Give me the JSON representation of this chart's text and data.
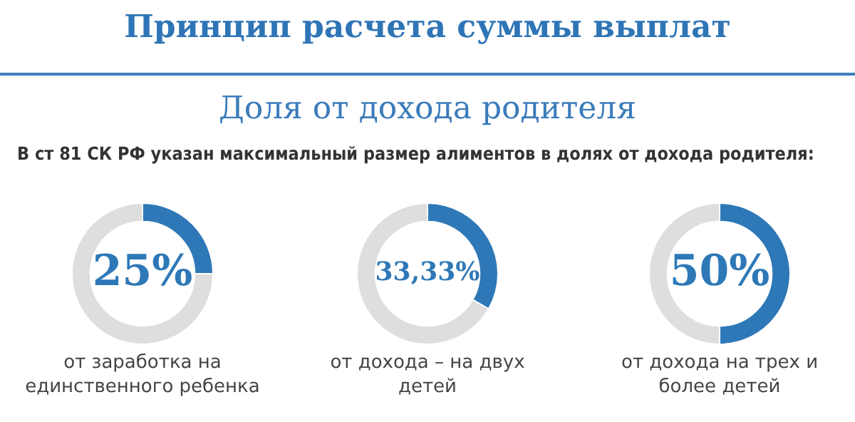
{
  "chart_data": [
    {
      "type": "other",
      "title": "Принцип расчета суммы выплат",
      "subtitle": "Доля от дохода родителя",
      "annotations": [
        "В ст 81 СК РФ указан максимальный размер алиментов в долях от дохода родителя:"
      ]
    },
    {
      "type": "donut",
      "categories": [
        null,
        null
      ],
      "values": [
        25,
        75
      ],
      "colors": [
        "#2e78b7",
        "#dedede"
      ],
      "value_labels": [
        "25%",
        null
      ],
      "xlabel": "от заработка на единственного ребенка",
      "legend": false
    },
    {
      "type": "donut",
      "categories": [
        null,
        null
      ],
      "values": [
        33.33,
        66.67
      ],
      "colors": [
        "#2e78b7",
        "#dedede"
      ],
      "value_labels": [
        "33,33%",
        null
      ],
      "xlabel": "от дохода – на двух детей",
      "legend": false
    },
    {
      "type": "donut",
      "categories": [
        null,
        null
      ],
      "values": [
        50,
        50
      ],
      "colors": [
        "#2e78b7",
        "#dedede"
      ],
      "value_labels": [
        "50%",
        null
      ],
      "xlabel": "от дохода на трех и более детей",
      "legend": false
    }
  ]
}
